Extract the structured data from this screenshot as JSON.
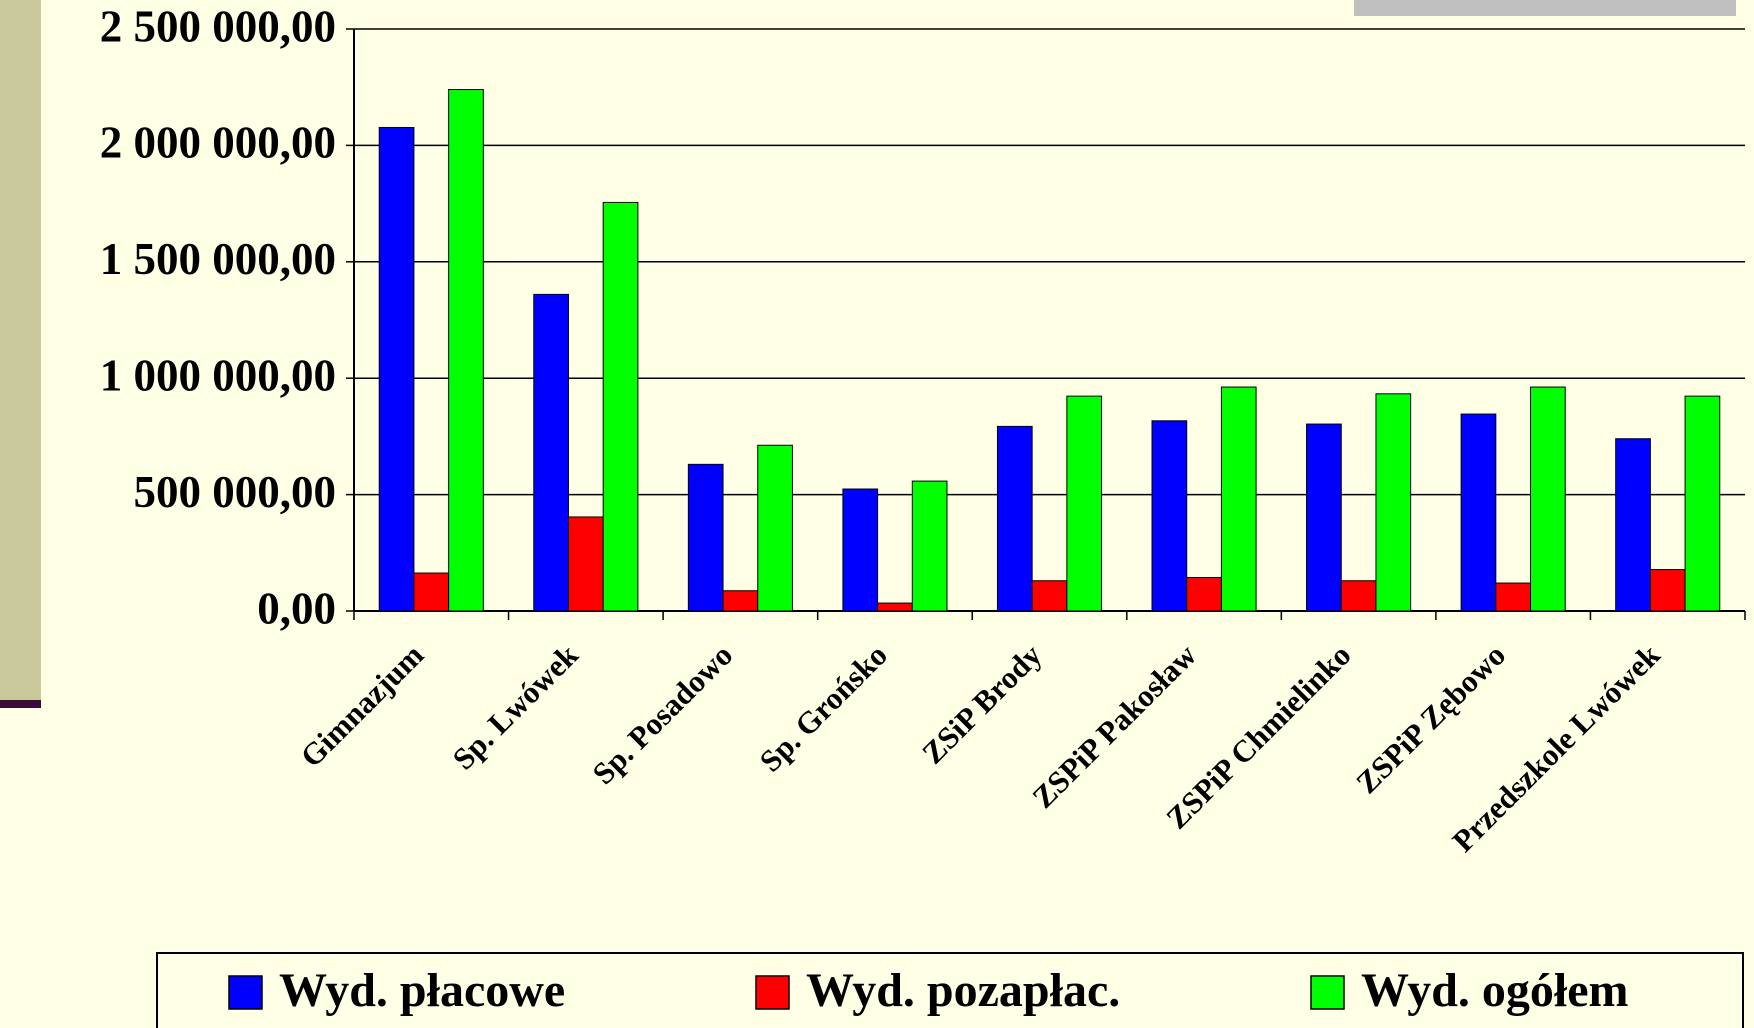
{
  "chart_data": {
    "type": "bar",
    "categories": [
      "Gimnazjum",
      "Sp. Lwówek",
      "Sp. Posadowo",
      "Sp. Grońsko",
      "ZSiP Brody",
      "ZSPiP Pakosław",
      "ZSPiP Chmielinko",
      "ZSPiP Zębowo",
      "Przedszkole Lwówek"
    ],
    "series": [
      {
        "name": "Wyd. płacowe",
        "color": "#0000ff",
        "values": [
          2077000,
          1360000,
          630000,
          524000,
          793000,
          817000,
          803000,
          846000,
          740000
        ]
      },
      {
        "name": "Wyd. pozapłac.",
        "color": "#ff0000",
        "values": [
          163000,
          404000,
          87000,
          34000,
          130000,
          144000,
          130000,
          120000,
          178000
        ]
      },
      {
        "name": "Wyd. ogółem",
        "color": "#00ff00",
        "values": [
          2240000,
          1755000,
          712000,
          558000,
          923000,
          962000,
          933000,
          962000,
          923000
        ]
      }
    ],
    "ylim": [
      0,
      2500000
    ],
    "yticks": [
      {
        "value": 0,
        "label": "0,00"
      },
      {
        "value": 500000,
        "label": "500 000,00"
      },
      {
        "value": 1000000,
        "label": "1 000 000,00"
      },
      {
        "value": 1500000,
        "label": "1 500 000,00"
      },
      {
        "value": 2000000,
        "label": "2 000 000,00"
      },
      {
        "value": 2500000,
        "label": "2 500 000,00"
      }
    ],
    "grid": true
  }
}
